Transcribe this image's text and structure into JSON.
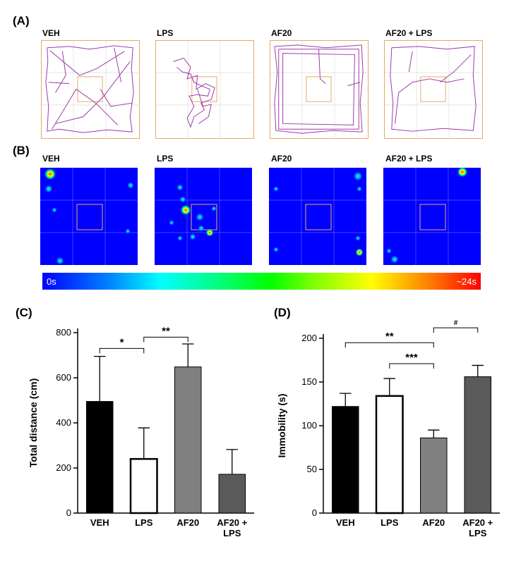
{
  "panels": {
    "a": "(A)",
    "b": "(B)",
    "c": "(C)",
    "d": "(D)"
  },
  "groups": [
    "VEH",
    "LPS",
    "AF20",
    "AF20 + LPS"
  ],
  "colorbar": {
    "min_label": "0s",
    "max_label": "~24s"
  },
  "colors": {
    "trace": "#9b3aa5",
    "box_border": "#e8a867",
    "heat_bg": "#0000ff",
    "bars": [
      "#000000",
      "#ffffff",
      "#808080",
      "#5a5a5a"
    ]
  },
  "chart_data": [
    {
      "type": "bar",
      "panel": "C",
      "ylabel": "Total distance (cm)",
      "categories": [
        "VEH",
        "LPS",
        "AF20",
        "AF20 +\nLPS"
      ],
      "tick_lines": [
        [
          "VEH"
        ],
        [
          "LPS"
        ],
        [
          "AF20"
        ],
        [
          "AF20 +",
          "LPS"
        ]
      ],
      "values": [
        495,
        240,
        648,
        172
      ],
      "errors": [
        200,
        138,
        102,
        110
      ],
      "ylim": [
        0,
        800
      ],
      "yticks": [
        0,
        200,
        400,
        600,
        800
      ],
      "significance": [
        {
          "from": 0,
          "to": 1,
          "label": "*",
          "y": 730
        },
        {
          "from": 1,
          "to": 2,
          "label": "**",
          "y": 780
        }
      ]
    },
    {
      "type": "bar",
      "panel": "D",
      "ylabel": "Immobility (s)",
      "categories": [
        "VEH",
        "LPS",
        "AF20",
        "AF20 +\nLPS"
      ],
      "tick_lines": [
        [
          "VEH"
        ],
        [
          "LPS"
        ],
        [
          "AF20"
        ],
        [
          "AF20 +",
          "LPS"
        ]
      ],
      "values": [
        122,
        134,
        86,
        156
      ],
      "errors": [
        15,
        20,
        9,
        13
      ],
      "ylim": [
        0,
        200
      ],
      "yticks": [
        0,
        50,
        100,
        150,
        200
      ],
      "significance": [
        {
          "from": 0,
          "to": 2,
          "label": "**",
          "y": 195
        },
        {
          "from": 1,
          "to": 2,
          "label": "***",
          "y": 171
        },
        {
          "from": 2,
          "to": 3,
          "label": "#",
          "y": 212
        }
      ]
    }
  ]
}
